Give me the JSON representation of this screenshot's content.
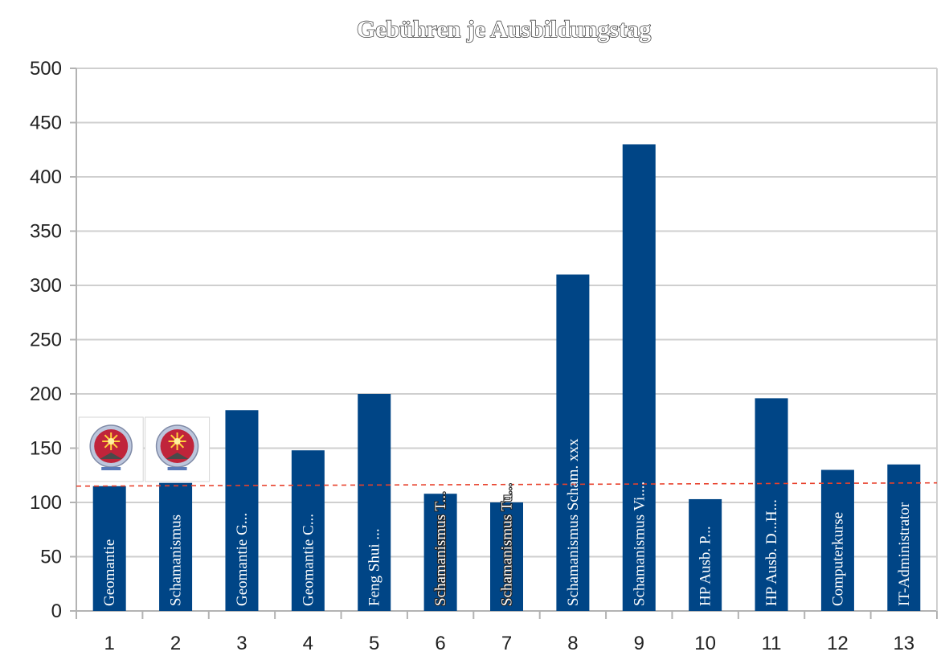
{
  "chart_data": {
    "type": "bar",
    "title": "Gebühren je Ausbildungstag",
    "categories": [
      "1",
      "2",
      "3",
      "4",
      "5",
      "6",
      "7",
      "8",
      "9",
      "10",
      "11",
      "12",
      "13"
    ],
    "series": [
      {
        "values": [
          115,
          118,
          185,
          148,
          200,
          108,
          100,
          310,
          430,
          103,
          196,
          130,
          135
        ],
        "labels": [
          "Geomantie",
          "Schamanismus",
          "Geomantie G...",
          "Geomantie C...",
          "Feng Shui ...",
          "Schamanismus T...",
          "Schamanismus Tu...",
          "Schamanismus Scham. xxx",
          "Schamanismus Vi....",
          "HP Ausb. P...",
          "HP Ausb. D...H...",
          "Computerkurse",
          "IT-Administrator"
        ],
        "color": "#004586"
      }
    ],
    "ylim": [
      0,
      500
    ],
    "yticks": [
      0,
      50,
      100,
      150,
      200,
      250,
      300,
      350,
      400,
      450,
      500
    ],
    "trendline": {
      "style": "dashed",
      "color": "#e8412c",
      "start": 115,
      "end": 118
    },
    "grid": true,
    "legend": "none",
    "logo_badges": {
      "categories": [
        "1",
        "2"
      ],
      "icon": "sun-medallion-icon"
    }
  }
}
